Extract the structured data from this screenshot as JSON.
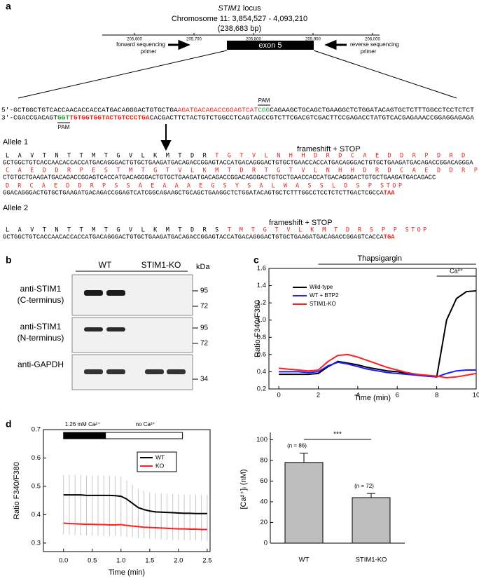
{
  "panel_a": {
    "label": "a",
    "gene": "STIM1",
    "locus": "locus",
    "chromosome": "Chromosome 11: 3,854,527 - 4,093,210",
    "length": "(238,683 bp)",
    "scale": [
      "205,600",
      "205,700",
      "205,800",
      "205,900",
      "206,000"
    ],
    "exon": "exon 5",
    "forward_primer": [
      "forward sequencing",
      "primer"
    ],
    "reverse_primer": [
      "reverse sequencing",
      "primer"
    ],
    "pam": [
      "PAM",
      "PAM"
    ],
    "wildtype": [
      [
        {
          "text": "5'-GCTGGCTGTCACCAACACCACCATGACAGGGACTGTGCTGA",
          "color": "#000000"
        },
        {
          "text": "AGATGACAGACCGGAGTCAT",
          "color": "#e8251e"
        },
        {
          "text": "CGG",
          "color": "#2a9d3a"
        },
        {
          "text": "CAGAAGCTGCAGCTGAAGGCTCTGGATACAGTGCTCTTTGGCCTCCTCTCT",
          "color": "#000000"
        }
      ],
      [
        {
          "text": "3'-CGACCGACAGT",
          "color": "#000000"
        },
        {
          "text": "GGT",
          "color": "#2a9d3a",
          "bold": true
        },
        {
          "text": "TGTGGTGGTACTGTCCCTGA",
          "color": "#e8251e",
          "bold": true
        },
        {
          "text": "CACGACTTCTACTGTCTGGCCTCAGTAGCCGTCTTCGACGTCGACTTCCGAGACCTATGTCACGAGAAACCGGAGGAGAGA",
          "color": "#000000"
        }
      ]
    ],
    "alleles": [
      {
        "name": "Allele 1",
        "note": "frameshift + STOP",
        "lines": [
          {
            "protein": [
              {
                "text": "L A V T N T T M T G V L K M T D R",
                "color": "#000000"
              },
              {
                "text": "T G T V L N H H D R D C A E D D R P D R D",
                "color": "#e8251e"
              }
            ],
            "dna": [
              {
                "text": "GCTGGCTGTCACCAACACCACCATGACAGGGACTGTGCTGAAGATGACAGACCGGAGTACCATGACAGGGACTGTGCTGAACCACCATGACAGGGACTGTGCTGAAGATGACAGACCGGACAGGGA",
                "color": "#000000"
              }
            ]
          },
          {
            "protein": [
              {
                "text": "C A E D D R P E S T M T G T V L K M T D R T G T V L N H H D R D C A E D D R P",
                "color": "#e8251e"
              }
            ],
            "dna": [
              {
                "text": "CTGTGCTGAAGATGACAGACCGGAGTCACCATGACAGGGACTGTGCTGAAGATGACAGACCGGACAGGGACTGTGCTGAACCACCATGACAGGGACTGTGCTGAAGATGACAGACC",
                "color": "#000000"
              }
            ]
          },
          {
            "protein": [
              {
                "text": "D R C A E D D R P S S A E A A A E G S Y S A L W A S S L D S P STOP",
                "color": "#e8251e"
              }
            ],
            "dna": [
              {
                "text": "GGACAGGGACTGTGCTGAAGATGACAGACCGGAGTCATCGGCAGAAGCTGCAGCTGAAGGCTCTGGATACAGTGCTCTTTGGCCTCCTCTCTTGACTCGCCA",
                "color": "#000000"
              },
              {
                "text": "TAA",
                "color": "#e8251e",
                "bold": true
              }
            ]
          }
        ]
      },
      {
        "name": "Allele 2",
        "note": "frameshift + STOP",
        "lines": [
          {
            "protein": [
              {
                "text": "L A V T N T T M T G V L K M T D R S",
                "color": "#000000"
              },
              {
                "text": "T M T G T V L K M T D R S P P STOP",
                "color": "#e8251e"
              }
            ],
            "dna": [
              {
                "text": "GCTGGCTGTCACCAACACCACCATGACAGGGACTGTGCTGAAGATGACAGACCGGAGTACCATGACAGGGACTGTGCTGAAGATGACAGACCGGAGTCACCA",
                "color": "#000000"
              },
              {
                "text": "TGA",
                "color": "#e8251e",
                "bold": true
              }
            ]
          }
        ]
      }
    ]
  },
  "panel_b": {
    "label": "b",
    "columns": [
      "WT",
      "STIM1-KO"
    ],
    "unit": "kDa",
    "rows": [
      {
        "antibody": [
          "anti-STIM1",
          "(C-terminus)"
        ],
        "markers": [
          95,
          72
        ]
      },
      {
        "antibody": [
          "anti-STIM1",
          "(N-terminus)"
        ],
        "markers": [
          95,
          72
        ]
      },
      {
        "antibody": [
          "anti-GAPDH"
        ],
        "markers": [
          34
        ]
      }
    ]
  },
  "chart_data": [
    {
      "panel": "c",
      "type": "line",
      "xlabel": "Time (min)",
      "ylabel": "Ratio F340/F380",
      "x": [
        0,
        0.5,
        1,
        1.5,
        2,
        2.5,
        3,
        3.5,
        4,
        4.5,
        5,
        5.5,
        6,
        6.5,
        7,
        7.5,
        8,
        8.5,
        9,
        9.5,
        10
      ],
      "series": [
        {
          "name": "Wild-type",
          "color": "#000000",
          "values": [
            0.37,
            0.37,
            0.37,
            0.37,
            0.38,
            0.46,
            0.52,
            0.5,
            0.48,
            0.45,
            0.43,
            0.41,
            0.4,
            0.38,
            0.36,
            0.35,
            0.34,
            1.0,
            1.25,
            1.33,
            1.34
          ]
        },
        {
          "name": "WT + BTP2",
          "color": "#1f1fff",
          "values": [
            0.4,
            0.4,
            0.4,
            0.39,
            0.4,
            0.47,
            0.51,
            0.49,
            0.46,
            0.43,
            0.41,
            0.39,
            0.38,
            0.37,
            0.36,
            0.35,
            0.34,
            0.38,
            0.41,
            0.42,
            0.42
          ]
        },
        {
          "name": "STIM1-KO",
          "color": "#ff1f1f",
          "values": [
            0.44,
            0.43,
            0.42,
            0.41,
            0.42,
            0.52,
            0.59,
            0.6,
            0.57,
            0.53,
            0.49,
            0.45,
            0.42,
            0.39,
            0.37,
            0.36,
            0.35,
            0.33,
            0.34,
            0.36,
            0.38
          ]
        }
      ],
      "xlim": [
        -0.5,
        10
      ],
      "ylim": [
        0.2,
        1.6
      ],
      "xticks": [
        0,
        2,
        4,
        6,
        8,
        10
      ],
      "yticks": [
        0.2,
        0.4,
        0.6,
        0.8,
        {
          "value": 1,
          "label": "1.0"
        },
        1.2,
        1.4,
        1.6
      ],
      "annotations": [
        {
          "text": "Thapsigargin",
          "x": [
            2,
            10
          ]
        },
        {
          "text": "Ca²⁺",
          "x": [
            8,
            10
          ]
        }
      ]
    },
    {
      "panel": "d",
      "type": "line",
      "xlabel": "Time (min)",
      "ylabel": "Ratio F340/F380",
      "x": [
        0,
        0.1,
        0.2,
        0.3,
        0.4,
        0.5,
        0.6,
        0.7,
        0.8,
        0.9,
        1,
        1.1,
        1.2,
        1.3,
        1.4,
        1.5,
        1.6,
        1.7,
        1.8,
        1.9,
        2,
        2.1,
        2.2,
        2.3,
        2.4,
        2.5
      ],
      "series": [
        {
          "name": "WT",
          "color": "#000000",
          "values": [
            0.47,
            0.47,
            0.47,
            0.47,
            0.468,
            0.468,
            0.468,
            0.468,
            0.468,
            0.467,
            0.465,
            0.455,
            0.44,
            0.425,
            0.418,
            0.413,
            0.41,
            0.409,
            0.408,
            0.407,
            0.406,
            0.405,
            0.405,
            0.404,
            0.404,
            0.404
          ],
          "errors": [
            0.07,
            0.07,
            0.07,
            0.07,
            0.07,
            0.07,
            0.07,
            0.07,
            0.07,
            0.07,
            0.07,
            0.066,
            0.066,
            0.066,
            0.066,
            0.066,
            0.066,
            0.066,
            0.066,
            0.066,
            0.066,
            0.066,
            0.066,
            0.066,
            0.066,
            0.066
          ]
        },
        {
          "name": "KO",
          "color": "#ff1f1f",
          "values": [
            0.37,
            0.369,
            0.368,
            0.367,
            0.366,
            0.366,
            0.365,
            0.365,
            0.364,
            0.364,
            0.365,
            0.362,
            0.36,
            0.358,
            0.356,
            0.355,
            0.354,
            0.353,
            0.352,
            0.351,
            0.35,
            0.35,
            0.349,
            0.349,
            0.348,
            0.348
          ],
          "errors": [
            0.04,
            0.04,
            0.04,
            0.04,
            0.04,
            0.04,
            0.04,
            0.04,
            0.04,
            0.04,
            0.04,
            0.04,
            0.04,
            0.04,
            0.04,
            0.04,
            0.04,
            0.04,
            0.04,
            0.04,
            0.04,
            0.04,
            0.04,
            0.04,
            0.04,
            0.04
          ]
        }
      ],
      "xlim": [
        -0.35,
        2.55
      ],
      "ylim": [
        0.27,
        0.7
      ],
      "xticks": [
        {
          "value": 0,
          "label": "0.0"
        },
        0.5,
        {
          "value": 1,
          "label": "1.0"
        },
        1.5,
        {
          "value": 2,
          "label": "2.0"
        },
        2.5
      ],
      "yticks": [
        0.3,
        0.4,
        0.5,
        0.6,
        0.7
      ],
      "annotations": [
        {
          "text": "1.26 mM Ca²⁺",
          "x": [
            0,
            0.73
          ]
        },
        {
          "text": "no Ca²⁺",
          "x": [
            0.73,
            2.07
          ]
        }
      ]
    },
    {
      "type": "bar",
      "ylabel": "[Ca²⁺]ᵢ (nM)",
      "categories": [
        "WT",
        "STIM1-KO"
      ],
      "values": [
        78,
        44
      ],
      "errors": [
        9,
        4
      ],
      "color": "#bdbdbd",
      "n_labels": [
        "(n = 86)",
        "(n = 72)"
      ],
      "significance": "***",
      "ylim": [
        0,
        107
      ],
      "yticks": [
        0,
        20,
        40,
        60,
        80,
        100
      ]
    }
  ]
}
